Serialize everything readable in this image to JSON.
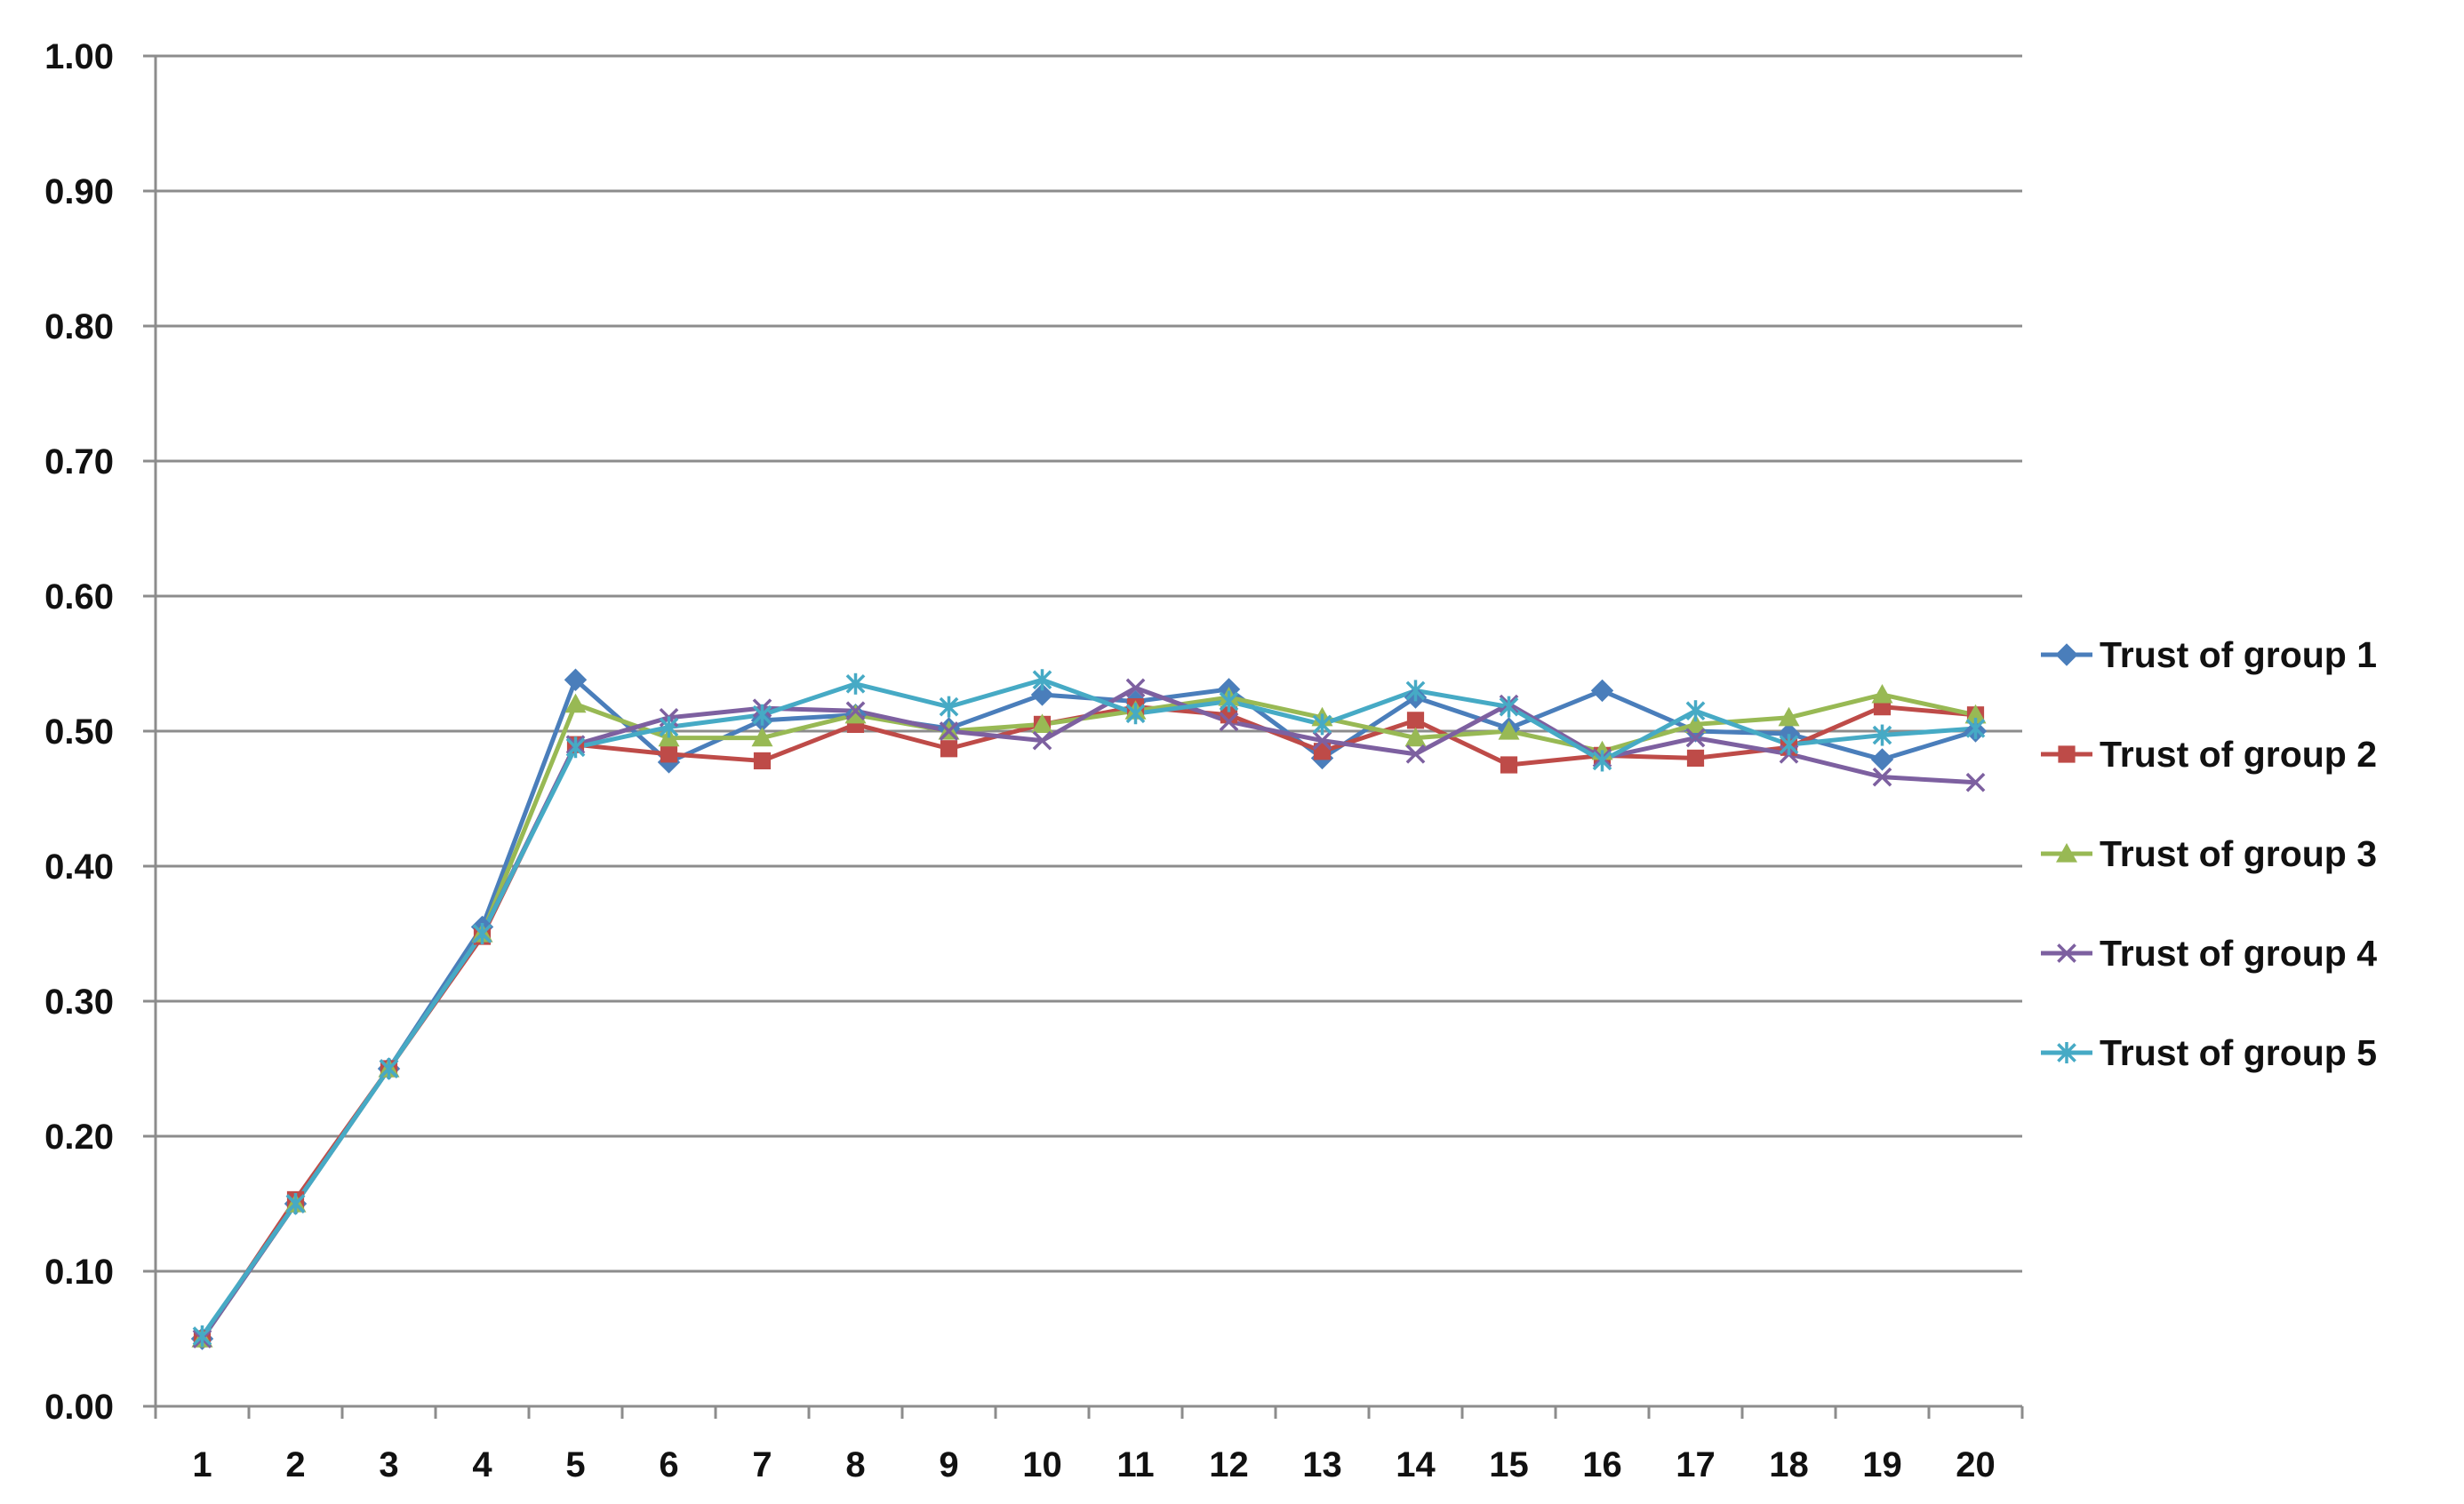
{
  "chart_data": {
    "type": "line",
    "title": "",
    "xlabel": "",
    "ylabel": "",
    "x": [
      1,
      2,
      3,
      4,
      5,
      6,
      7,
      8,
      9,
      10,
      11,
      12,
      13,
      14,
      15,
      16,
      17,
      18,
      19,
      20
    ],
    "xtick_labels": [
      "1",
      "2",
      "3",
      "4",
      "5",
      "6",
      "7",
      "8",
      "9",
      "10",
      "11",
      "12",
      "13",
      "14",
      "15",
      "16",
      "17",
      "18",
      "19",
      "20"
    ],
    "ylim": [
      0,
      1
    ],
    "yticks": [
      0.0,
      0.1,
      0.2,
      0.3,
      0.4,
      0.5,
      0.6,
      0.7,
      0.8,
      0.9,
      1.0
    ],
    "ytick_labels": [
      "0.00",
      "0.10",
      "0.20",
      "0.30",
      "0.40",
      "0.50",
      "0.60",
      "0.70",
      "0.80",
      "0.90",
      "1.00"
    ],
    "grid": "horizontal",
    "legend_position": "right",
    "series": [
      {
        "name": "Trust of group 1",
        "color": "#4A7EBB",
        "marker": "diamond",
        "values": [
          0.05,
          0.15,
          0.25,
          0.355,
          0.538,
          0.477,
          0.508,
          0.512,
          0.502,
          0.527,
          0.522,
          0.531,
          0.48,
          0.525,
          0.502,
          0.53,
          0.5,
          0.498,
          0.479,
          0.5
        ]
      },
      {
        "name": "Trust of group 2",
        "color": "#BE4B48",
        "marker": "square",
        "values": [
          0.05,
          0.153,
          0.25,
          0.348,
          0.49,
          0.483,
          0.478,
          0.505,
          0.487,
          0.505,
          0.518,
          0.512,
          0.485,
          0.508,
          0.475,
          0.482,
          0.48,
          0.488,
          0.518,
          0.512
        ]
      },
      {
        "name": "Trust of group 3",
        "color": "#98B954",
        "marker": "triangle",
        "values": [
          0.05,
          0.15,
          0.25,
          0.35,
          0.52,
          0.495,
          0.495,
          0.512,
          0.5,
          0.505,
          0.515,
          0.525,
          0.51,
          0.495,
          0.5,
          0.485,
          0.505,
          0.51,
          0.527,
          0.512
        ]
      },
      {
        "name": "Trust of group 4",
        "color": "#7D60A0",
        "marker": "x",
        "values": [
          0.05,
          0.15,
          0.25,
          0.35,
          0.49,
          0.51,
          0.517,
          0.515,
          0.5,
          0.493,
          0.532,
          0.507,
          0.493,
          0.483,
          0.52,
          0.48,
          0.495,
          0.483,
          0.466,
          0.462
        ]
      },
      {
        "name": "Trust of group 5",
        "color": "#46AAC5",
        "marker": "star",
        "values": [
          0.052,
          0.15,
          0.25,
          0.35,
          0.488,
          0.503,
          0.512,
          0.535,
          0.518,
          0.538,
          0.513,
          0.522,
          0.505,
          0.53,
          0.518,
          0.478,
          0.515,
          0.49,
          0.497,
          0.502
        ]
      }
    ]
  }
}
